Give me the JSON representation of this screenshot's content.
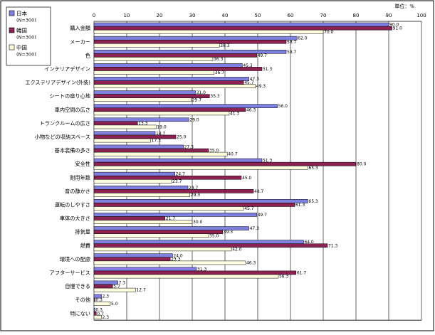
{
  "chart_data": {
    "type": "bar",
    "orientation": "horizontal",
    "unit_label": "単位：%",
    "xlim": [
      0,
      100
    ],
    "x_ticks": [
      0,
      10,
      20,
      30,
      40,
      50,
      60,
      70,
      80,
      90,
      100
    ],
    "grid": true,
    "legend_position": "left-top",
    "categories": [
      "購入金額",
      "メーカー",
      "色",
      "インテリアデザイン",
      "エクステリアデザイン(外装)",
      "シートの座り心地",
      "車内空間の広さ",
      "トランクルームの広さ",
      "小物などの収納スペース",
      "基本装備の多さ",
      "安全性",
      "耐用年数",
      "音の静かさ",
      "運転のしやすさ",
      "車体の大きさ",
      "排気量",
      "燃費",
      "環境への配慮",
      "アフターサービス",
      "自慢できる",
      "その他",
      "特にない"
    ],
    "series": [
      {
        "name": "日本",
        "n_label": "(N=300)",
        "color": "#8080e0",
        "values": [
          90.0,
          62.0,
          58.7,
          45.3,
          47.3,
          31.0,
          56.0,
          29.0,
          18.7,
          27.3,
          51.3,
          24.7,
          28.7,
          65.3,
          49.7,
          47.3,
          64.0,
          24.0,
          31.3,
          7.3,
          2.3,
          0.3
        ]
      },
      {
        "name": "韓国",
        "n_label": "(N=300)",
        "color": "#8b2252",
        "values": [
          91.0,
          58.7,
          49.7,
          51.3,
          45.7,
          35.3,
          46.3,
          13.3,
          25.0,
          35.0,
          80.0,
          45.0,
          48.7,
          61.3,
          21.7,
          39.3,
          71.3,
          23.3,
          61.7,
          5.7,
          0.3,
          0.7
        ]
      },
      {
        "name": "中国",
        "n_label": "(N=300)",
        "color": "#ffffe0",
        "values": [
          70.0,
          38.3,
          36.3,
          36.7,
          49.3,
          29.7,
          41.3,
          19.0,
          17.3,
          40.7,
          65.3,
          23.7,
          29.3,
          45.7,
          30.0,
          35.0,
          42.0,
          46.3,
          56.3,
          12.7,
          5.0,
          2.3
        ]
      }
    ]
  }
}
